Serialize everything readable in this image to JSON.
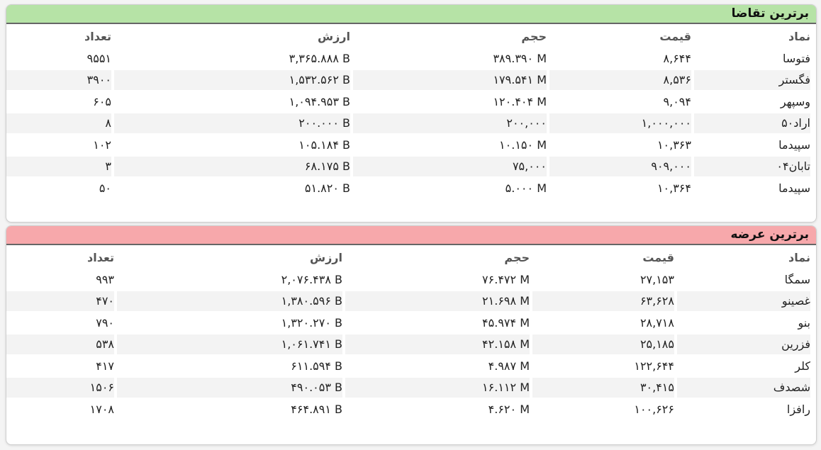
{
  "demand": {
    "title": "برترین تقاضا",
    "headers": {
      "symbol": "نماد",
      "price": "قیمت",
      "volume": "حجم",
      "value": "ارزش",
      "count": "تعداد"
    },
    "rows": [
      {
        "symbol": "فتوسا",
        "price": "۸,۶۴۴",
        "volume": "۳۸۹.۳۹۰ M",
        "value": "۳,۳۶۵.۸۸۸ B",
        "count": "۹۵۵۱"
      },
      {
        "symbol": "فگستر",
        "price": "۸,۵۳۶",
        "volume": "۱۷۹.۵۴۱ M",
        "value": "۱,۵۳۲.۵۶۲ B",
        "count": "۳۹۰۰"
      },
      {
        "symbol": "وسپهر",
        "price": "۹,۰۹۴",
        "volume": "۱۲۰.۴۰۴ M",
        "value": "۱,۰۹۴.۹۵۳ B",
        "count": "۶۰۵"
      },
      {
        "symbol": "اراد۵۰",
        "price": "۱,۰۰۰,۰۰۰",
        "volume": "۲۰۰,۰۰۰",
        "value": "۲۰۰.۰۰۰ B",
        "count": "۸"
      },
      {
        "symbol": "سپیدما",
        "price": "۱۰,۳۶۳",
        "volume": "۱۰.۱۵۰ M",
        "value": "۱۰۵.۱۸۴ B",
        "count": "۱۰۲"
      },
      {
        "symbol": "تابان۰۴",
        "price": "۹۰۹,۰۰۰",
        "volume": "۷۵,۰۰۰",
        "value": "۶۸.۱۷۵ B",
        "count": "۳"
      },
      {
        "symbol": "سپیدما",
        "price": "۱۰,۳۶۴",
        "volume": "۵.۰۰۰ M",
        "value": "۵۱.۸۲۰ B",
        "count": "۵۰"
      }
    ]
  },
  "supply": {
    "title": "برترین عرضه",
    "headers": {
      "symbol": "نماد",
      "price": "قیمت",
      "volume": "حجم",
      "value": "ارزش",
      "count": "تعداد"
    },
    "rows": [
      {
        "symbol": "سمگا",
        "price": "۲۷,۱۵۳",
        "volume": "۷۶.۴۷۲ M",
        "value": "۲,۰۷۶.۴۳۸ B",
        "count": "۹۹۳"
      },
      {
        "symbol": "غصینو",
        "price": "۶۳,۶۲۸",
        "volume": "۲۱.۶۹۸ M",
        "value": "۱,۳۸۰.۵۹۶ B",
        "count": "۴۷۰"
      },
      {
        "symbol": "بنو",
        "price": "۲۸,۷۱۸",
        "volume": "۴۵.۹۷۴ M",
        "value": "۱,۳۲۰.۲۷۰ B",
        "count": "۷۹۰"
      },
      {
        "symbol": "فزرین",
        "price": "۲۵,۱۸۵",
        "volume": "۴۲.۱۵۸ M",
        "value": "۱,۰۶۱.۷۴۱ B",
        "count": "۵۳۸"
      },
      {
        "symbol": "کلر",
        "price": "۱۲۲,۶۴۴",
        "volume": "۴.۹۸۷ M",
        "value": "۶۱۱.۵۹۴ B",
        "count": "۴۱۷"
      },
      {
        "symbol": "شصدف",
        "price": "۳۰,۴۱۵",
        "volume": "۱۶.۱۱۲ M",
        "value": "۴۹۰.۰۵۳ B",
        "count": "۱۵۰۶"
      },
      {
        "symbol": "رافزا",
        "price": "۱۰۰,۶۲۶",
        "volume": "۴.۶۲۰ M",
        "value": "۴۶۴.۸۹۱ B",
        "count": "۱۷۰۸"
      }
    ]
  }
}
